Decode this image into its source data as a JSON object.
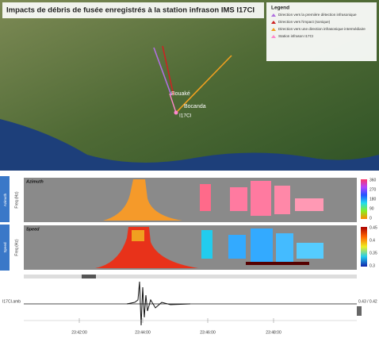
{
  "header": {
    "title": "Impacts de débris de fusée enregistrés à la station infrason IMS I17CI"
  },
  "legend": {
    "title": "Legend",
    "items": [
      "Direction vers la première détection infrasonique",
      "Direction vers l'impact (sonique)",
      "Direction vers une direction infrasonique intermédiaire",
      "Station infrason I17CI"
    ]
  },
  "map": {
    "labels": [
      "Bouaké",
      "Bocanda",
      "I17CI"
    ]
  },
  "panels": [
    {
      "label": "Azimuth",
      "y_axis": "Freq (Hz)",
      "colorbar_ticks": [
        "360",
        "270",
        "180",
        "90",
        "0"
      ]
    },
    {
      "label": "Speed",
      "y_axis": "Freq (Hz)",
      "colorbar_ticks": [
        "0.45",
        "0.4",
        "0.35",
        "0.3"
      ]
    }
  ],
  "waveform": {
    "station_label": "I17CI.amb",
    "amplitude": "0.43 / 0.42",
    "time_labels": [
      "23:42:00",
      "23:44:00",
      "23:46:00",
      "23:48:00"
    ]
  }
}
